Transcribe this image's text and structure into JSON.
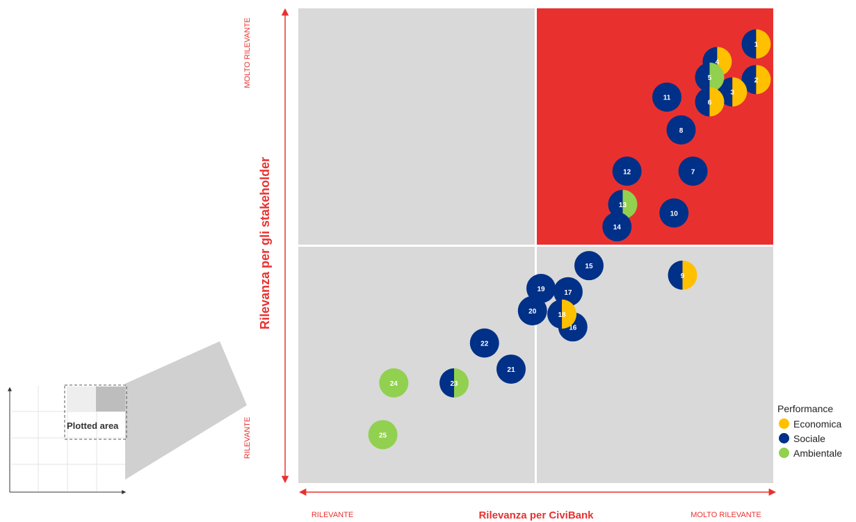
{
  "colors": {
    "economica": "#FFC000",
    "sociale": "#003087",
    "ambientale": "#92D050",
    "accent": "#E8312F",
    "panel": "#D9D9D9"
  },
  "legend": {
    "title": "Performance",
    "items": [
      {
        "label": "Economica",
        "color": "#FFC000"
      },
      {
        "label": "Sociale",
        "color": "#003087"
      },
      {
        "label": "Ambientale",
        "color": "#92D050"
      }
    ]
  },
  "inset": {
    "label": "Plotted area"
  },
  "chart_data": {
    "type": "scatter",
    "title": "",
    "xlabel": "Rilevanza per CiviBank",
    "ylabel": "Rilevanza per gli stakeholder",
    "x_tick_low": "RILEVANTE",
    "x_tick_high": "MOLTO RILEVANTE",
    "y_tick_low": "RILEVANTE",
    "y_tick_high": "MOLTO RILEVANTE",
    "xlim": [
      0,
      100
    ],
    "ylim": [
      0,
      100
    ],
    "high_quadrant": "top-right",
    "points": [
      {
        "label": "1",
        "x": 96.4,
        "y": 92.5,
        "split": [
          "sociale",
          "economica"
        ]
      },
      {
        "label": "2",
        "x": 96.4,
        "y": 85.0,
        "split": [
          "sociale",
          "economica"
        ]
      },
      {
        "label": "3",
        "x": 91.4,
        "y": 82.4,
        "split": [
          "sociale",
          "economica"
        ]
      },
      {
        "label": "4",
        "x": 88.2,
        "y": 88.8,
        "split": [
          "sociale",
          "economica"
        ]
      },
      {
        "label": "5",
        "x": 86.6,
        "y": 85.5,
        "split": [
          "sociale",
          "ambientale"
        ]
      },
      {
        "label": "6",
        "x": 86.6,
        "y": 80.3,
        "split": [
          "sociale",
          "economica"
        ]
      },
      {
        "label": "7",
        "x": 83.1,
        "y": 65.7,
        "split": [
          "sociale"
        ]
      },
      {
        "label": "8",
        "x": 80.6,
        "y": 74.4,
        "split": [
          "sociale"
        ]
      },
      {
        "label": "9",
        "x": 80.9,
        "y": 43.8,
        "split": [
          "sociale",
          "economica"
        ]
      },
      {
        "label": "10",
        "x": 79.1,
        "y": 56.9,
        "split": [
          "sociale"
        ]
      },
      {
        "label": "11",
        "x": 77.6,
        "y": 81.3,
        "split": [
          "sociale"
        ]
      },
      {
        "label": "12",
        "x": 69.2,
        "y": 65.7,
        "split": [
          "sociale"
        ]
      },
      {
        "label": "13",
        "x": 68.3,
        "y": 58.7,
        "split": [
          "sociale",
          "ambientale"
        ]
      },
      {
        "label": "14",
        "x": 67.1,
        "y": 54.0,
        "split": [
          "sociale"
        ]
      },
      {
        "label": "15",
        "x": 61.2,
        "y": 45.8,
        "split": [
          "sociale"
        ]
      },
      {
        "label": "16",
        "x": 57.8,
        "y": 32.9,
        "split": [
          "sociale"
        ]
      },
      {
        "label": "17",
        "x": 56.8,
        "y": 40.3,
        "split": [
          "sociale"
        ]
      },
      {
        "label": "18",
        "x": 55.5,
        "y": 35.6,
        "split": [
          "sociale",
          "economica"
        ]
      },
      {
        "label": "19",
        "x": 51.1,
        "y": 41.0,
        "split": [
          "sociale"
        ]
      },
      {
        "label": "20",
        "x": 49.3,
        "y": 36.3,
        "split": [
          "sociale"
        ]
      },
      {
        "label": "21",
        "x": 44.8,
        "y": 24.0,
        "split": [
          "sociale"
        ]
      },
      {
        "label": "22",
        "x": 39.2,
        "y": 29.5,
        "split": [
          "sociale"
        ]
      },
      {
        "label": "23",
        "x": 32.8,
        "y": 21.1,
        "split": [
          "sociale",
          "ambientale"
        ]
      },
      {
        "label": "24",
        "x": 20.1,
        "y": 21.1,
        "split": [
          "ambientale"
        ]
      },
      {
        "label": "25",
        "x": 17.8,
        "y": 10.2,
        "split": [
          "ambientale"
        ]
      }
    ]
  }
}
